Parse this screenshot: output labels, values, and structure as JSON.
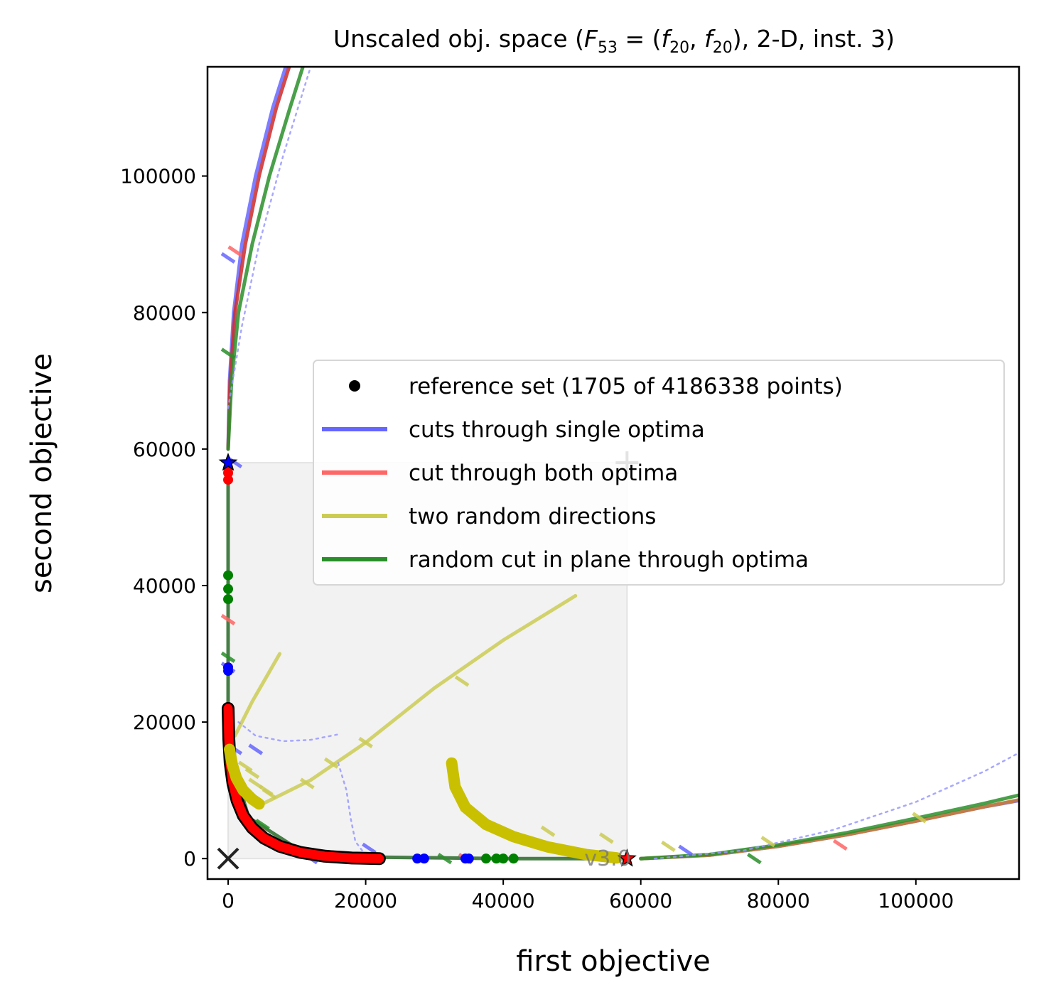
{
  "chart_data": {
    "type": "line",
    "title_prefix": "Unscaled obj. space (",
    "title_math": "F",
    "title_sub1": "53",
    "title_mid": " = (",
    "title_f1": "f",
    "title_sub2": "20",
    "title_comma": ", ",
    "title_f2": "f",
    "title_sub3": "20",
    "title_suffix": "), 2-D, inst. 3)",
    "xlabel": "first objective",
    "ylabel": "second objective",
    "xlim": [
      -3000,
      115000
    ],
    "ylim": [
      -3000,
      116000
    ],
    "xticks": [
      0,
      20000,
      40000,
      60000,
      80000,
      100000
    ],
    "yticks": [
      0,
      20000,
      40000,
      60000,
      80000,
      100000
    ],
    "xtick_labels": [
      "0",
      "20000",
      "40000",
      "60000",
      "80000",
      "100000"
    ],
    "ytick_labels": [
      "0",
      "20000",
      "40000",
      "60000",
      "80000",
      "100000"
    ],
    "version_label": "v3.0",
    "ideal_point": [
      0,
      0
    ],
    "nadir_point": [
      58000,
      58000
    ],
    "optimum_1": [
      0,
      58000
    ],
    "optimum_2": [
      58000,
      0
    ],
    "shaded_region": {
      "x": [
        0,
        58000
      ],
      "y": [
        0,
        58000
      ]
    },
    "legend": {
      "placement": "center-right",
      "entries": [
        {
          "label": "reference set (1705 of 4186338 points)",
          "color": "#000000",
          "kind": "marker"
        },
        {
          "label": "cuts through single optima",
          "color": "#6666ff",
          "kind": "line"
        },
        {
          "label": "cut through both optima",
          "color": "#ff6666",
          "kind": "line"
        },
        {
          "label": "two random directions",
          "color": "#cccc55",
          "kind": "line"
        },
        {
          "label": "random cut in plane through optima",
          "color": "#2a8f2a",
          "kind": "line"
        }
      ]
    },
    "series": [
      {
        "name": "cuts through single optima",
        "color": "#6666ff",
        "x": [
          0,
          200,
          800,
          2000,
          4000,
          6500,
          9000
        ],
        "y": [
          60000,
          70000,
          80000,
          90000,
          100000,
          110000,
          118000
        ]
      },
      {
        "name": "cut through both optima",
        "color": "#cc2a2a",
        "x": [
          0,
          300,
          1000,
          2500,
          4500,
          7000,
          9500
        ],
        "y": [
          60000,
          70000,
          80000,
          90000,
          100000,
          110000,
          118000
        ]
      },
      {
        "name": "random cut in plane through optima",
        "color": "#2a8f2a",
        "x": [
          0,
          500,
          1500,
          3500,
          6000,
          9000,
          11500
        ],
        "y": [
          60000,
          70000,
          80000,
          90000,
          100000,
          110000,
          118000
        ]
      },
      {
        "name": "cuts through single optima",
        "color": "#6666ff",
        "x": [
          60000,
          70000,
          80000,
          90000,
          100000,
          110000,
          115000
        ],
        "y": [
          0,
          500,
          1800,
          3500,
          5500,
          7600,
          8500
        ]
      },
      {
        "name": "cut through both optima",
        "color": "#cc7a2a",
        "x": [
          60000,
          70000,
          80000,
          90000,
          100000,
          110000,
          115000
        ],
        "y": [
          0,
          500,
          1800,
          3500,
          5500,
          7600,
          8600
        ]
      },
      {
        "name": "random cut in plane through optima",
        "color": "#2a8f2a",
        "x": [
          60000,
          70000,
          80000,
          90000,
          100000,
          110000,
          115000
        ],
        "y": [
          0,
          600,
          2000,
          3800,
          5900,
          8100,
          9300
        ]
      },
      {
        "name": "random cut in plane through optima",
        "color": "#2a6a2a",
        "x": [
          0,
          0,
          0,
          0,
          0,
          300,
          3000,
          10000,
          22000,
          40000,
          58000
        ],
        "y": [
          58000,
          50000,
          40000,
          30000,
          22000,
          15000,
          6000,
          1500,
          200,
          0,
          0
        ]
      },
      {
        "name": "two random directions",
        "color": "#cccc55",
        "x": [
          1000,
          3500,
          7500
        ],
        "y": [
          18000,
          23000,
          30000
        ]
      },
      {
        "name": "two random directions",
        "color": "#cccc55",
        "x": [
          5000,
          12000,
          20000,
          30000,
          40000,
          50500
        ],
        "y": [
          8000,
          11500,
          17000,
          25000,
          32000,
          38500
        ]
      },
      {
        "name": "dotted",
        "color": "#9999ff",
        "x": [
          0,
          2000,
          4500,
          8000,
          12000
        ],
        "y": [
          66000,
          78000,
          90000,
          103000,
          116000
        ]
      },
      {
        "name": "dotted",
        "color": "#9999ff",
        "x": [
          1500,
          4000,
          8000,
          12000,
          16000
        ],
        "y": [
          20000,
          18000,
          17200,
          17400,
          18200
        ]
      },
      {
        "name": "dotted",
        "color": "#9999ff",
        "x": [
          16000,
          17200,
          17800,
          18500,
          20000
        ],
        "y": [
          14000,
          10000,
          6000,
          2500,
          500
        ]
      },
      {
        "name": "dotted",
        "color": "#9999ff",
        "x": [
          62000,
          75000,
          88000,
          100000,
          110000,
          115000
        ],
        "y": [
          0,
          1200,
          4200,
          8300,
          12800,
          15500
        ]
      }
    ],
    "reference_front": {
      "color": "#000000",
      "x": [
        0,
        100,
        300,
        700,
        1300,
        2200,
        3500,
        5200,
        7500,
        10500,
        14000,
        18000,
        22000
      ],
      "y": [
        22000,
        17500,
        14000,
        11000,
        8500,
        6300,
        4500,
        3000,
        1800,
        900,
        350,
        80,
        0
      ]
    },
    "red_scatter_front": {
      "color": "#ff0000",
      "x": [
        0,
        100,
        300,
        700,
        1300,
        2200,
        3500,
        5200,
        7500,
        10500,
        14000,
        18000,
        22000
      ],
      "y": [
        22000,
        17500,
        14000,
        11000,
        8500,
        6300,
        4500,
        3000,
        1800,
        900,
        350,
        80,
        0
      ]
    },
    "red_scatter_upper": {
      "color": "#ff0000",
      "x": [
        0,
        0,
        0,
        0
      ],
      "y": [
        55500,
        56500,
        57200,
        28000
      ]
    },
    "blue_scatter": {
      "color": "#0000ff",
      "x": [
        0,
        0,
        27500,
        28500,
        34500,
        35000
      ],
      "y": [
        28000,
        27500,
        0,
        0,
        0,
        0
      ]
    },
    "green_scatter": {
      "color": "#008000",
      "x": [
        0,
        0,
        0,
        37500,
        39000,
        40000,
        41500
      ],
      "y": [
        41500,
        39500,
        38000,
        0,
        0,
        0,
        0
      ]
    },
    "yellow_scatter_front": {
      "color": "#c8c000",
      "x": [
        200,
        600,
        1200,
        2200,
        3500,
        4500
      ],
      "y": [
        16000,
        13800,
        11800,
        10000,
        8700,
        8000
      ]
    },
    "yellow_scatter_curve": {
      "color": "#c8c000",
      "x": [
        32500,
        33000,
        34500,
        37500,
        41500,
        46500,
        52000,
        56500
      ],
      "y": [
        14000,
        10500,
        7500,
        5000,
        3200,
        1700,
        600,
        100
      ]
    },
    "tick_marks": [
      {
        "color": "#6666ff",
        "x": [
          0,
          1000,
          0,
          1000,
          12000,
          20500,
          66500,
          4000
        ],
        "y": [
          88000,
          58000,
          28000,
          16000,
          0,
          1500,
          1200,
          16000
        ]
      },
      {
        "color": "#ff6666",
        "x": [
          1000,
          0,
          4500,
          34500,
          89000
        ],
        "y": [
          89000,
          35000,
          4500,
          0,
          2000
        ]
      },
      {
        "color": "#2a8f2a",
        "x": [
          0,
          0,
          5000,
          31500,
          76500
        ],
        "y": [
          74000,
          29500,
          5000,
          0,
          0
        ]
      },
      {
        "color": "#cccc55",
        "x": [
          2500,
          3500,
          4000,
          5500,
          6000,
          11500,
          15000,
          20000,
          34000,
          46500,
          55000,
          64000,
          78500,
          100500
        ],
        "y": [
          13500,
          12500,
          11000,
          10000,
          9500,
          11000,
          14000,
          17000,
          26000,
          4000,
          3000,
          1800,
          2500,
          6000
        ]
      }
    ]
  }
}
